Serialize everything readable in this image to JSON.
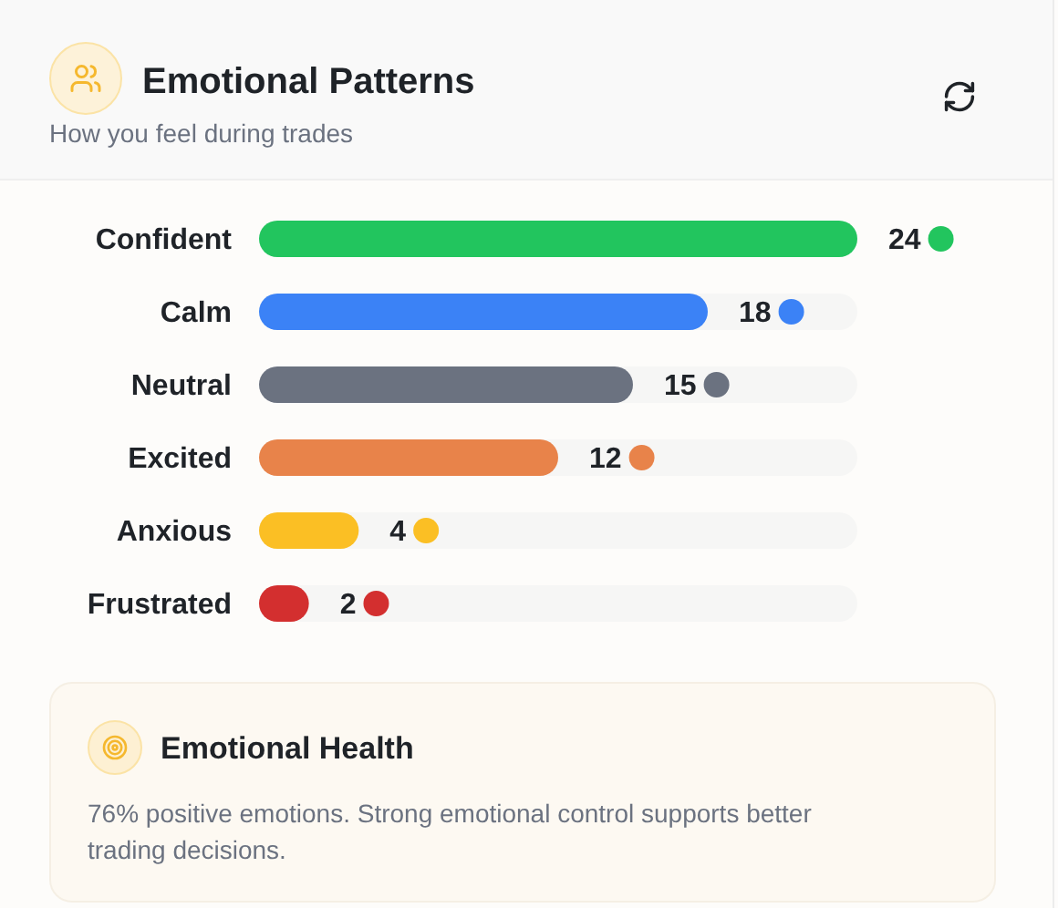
{
  "chart_data": {
    "type": "bar",
    "orientation": "horizontal",
    "title": "Emotional Patterns",
    "subtitle": "How you feel during trades",
    "categories": [
      "Confident",
      "Calm",
      "Neutral",
      "Excited",
      "Anxious",
      "Frustrated"
    ],
    "values": [
      24,
      18,
      15,
      12,
      4,
      2
    ],
    "colors": [
      "#22c55e",
      "#3b82f6",
      "#6b7280",
      "#e8834a",
      "#fbbf24",
      "#d32f2f"
    ],
    "xlim": [
      0,
      24
    ],
    "data_labels": true,
    "annotations": [
      "Emotional Health",
      "76% positive emotions. Strong emotional control supports better trading decisions."
    ]
  }
}
